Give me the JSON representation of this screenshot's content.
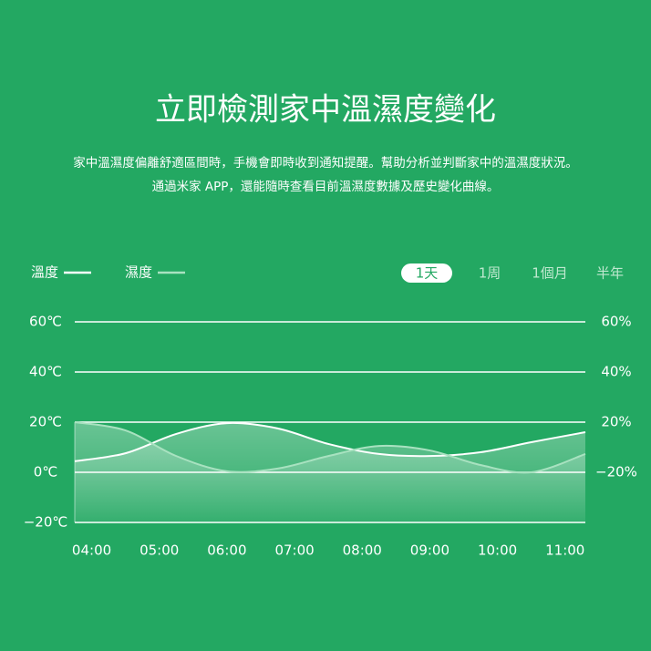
{
  "chart_data": {
    "type": "line",
    "title": "立即檢測家中溫濕度變化",
    "subtitle": [
      "家中溫濕度偏離舒適區間時，手機會即時收到通知提醒。幫助分析並判斷家中的溫濕度狀況。",
      "通過米家 APP，還能隨時查看目前溫濕度數據及歷史變化曲線。"
    ],
    "tabs": [
      "1天",
      "1周",
      "1個月",
      "半年"
    ],
    "active_tab": 0,
    "x": [
      3.75,
      4.5,
      5.25,
      6,
      6.75,
      7.5,
      8.25,
      9,
      9.75,
      10.5,
      11.3
    ],
    "series": [
      {
        "name": "溫度",
        "color": "#ffffff",
        "values": [
          4.4,
          7.6,
          15.3,
          19.6,
          17.5,
          11.3,
          7.3,
          6.5,
          8.0,
          12.0,
          16.0
        ]
      },
      {
        "name": "濕度",
        "color": "#a8e2c0",
        "values": [
          20,
          16.7,
          6.5,
          0.4,
          1.5,
          6.5,
          10.5,
          8.7,
          2.9,
          0,
          7.3
        ]
      }
    ],
    "xlim": [
      3.75,
      11.3
    ],
    "xticks": [
      {
        "value": 4,
        "label": "04:00"
      },
      {
        "value": 5,
        "label": "05:00"
      },
      {
        "value": 6,
        "label": "06:00"
      },
      {
        "value": 7,
        "label": "07:00"
      },
      {
        "value": 8,
        "label": "08:00"
      },
      {
        "value": 9,
        "label": "09:00"
      },
      {
        "value": 10,
        "label": "10:00"
      },
      {
        "value": 11,
        "label": "11:00"
      }
    ],
    "ylim": [
      -20,
      60
    ],
    "yticks": [
      {
        "value": 60,
        "label": "60℃"
      },
      {
        "value": 40,
        "label": "40℃"
      },
      {
        "value": 20,
        "label": "20℃"
      },
      {
        "value": 0,
        "label": "0℃"
      },
      {
        "value": -20,
        "label": "−20℃"
      }
    ],
    "right_axis_labels": [
      "60%",
      "40%",
      "20%",
      "−20%"
    ],
    "grid": true
  }
}
